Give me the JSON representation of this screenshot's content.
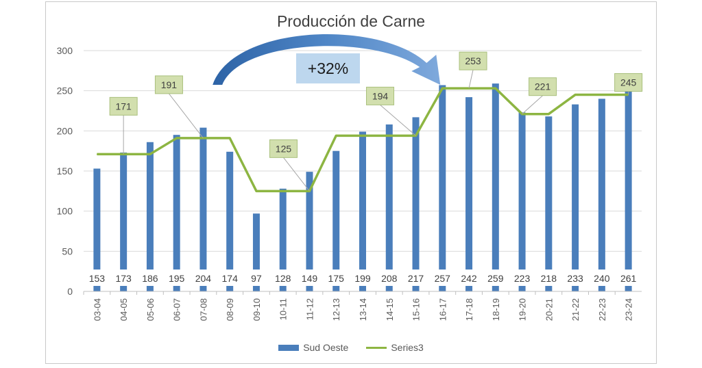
{
  "title": "Producción de Carne",
  "change_label": "+32%",
  "colors": {
    "bar": "#4a7ebb",
    "line": "#8db542",
    "callout_fill": "#d2dfae",
    "callout_border": "#a9c07c",
    "arrow": "#2e6ab0"
  },
  "legend": [
    {
      "label": "Sud Oeste",
      "kind": "bar"
    },
    {
      "label": "Series3",
      "kind": "line"
    }
  ],
  "chart_data": {
    "type": "bar",
    "title": "Producción de Carne",
    "xlabel": "",
    "ylabel": "",
    "ylim": [
      0,
      300
    ],
    "yticks": [
      0,
      50,
      100,
      150,
      200,
      250,
      300
    ],
    "grid": true,
    "legend_position": "bottom",
    "categories": [
      "03-04",
      "04-05",
      "05-06",
      "06-07",
      "07-08",
      "08-09",
      "09-10",
      "10-11",
      "11-12",
      "12-13",
      "13-14",
      "14-15",
      "15-16",
      "16-17",
      "17-18",
      "18-19",
      "19-20",
      "20-21",
      "21-22",
      "22-23",
      "23-24"
    ],
    "series": [
      {
        "name": "Sud Oeste",
        "type": "bar",
        "values": [
          153,
          173,
          186,
          195,
          204,
          174,
          97,
          128,
          149,
          175,
          199,
          208,
          217,
          257,
          242,
          259,
          223,
          218,
          233,
          240,
          261
        ]
      },
      {
        "name": "Series3",
        "type": "line",
        "values": [
          171,
          171,
          171,
          191,
          191,
          191,
          125,
          125,
          125,
          194,
          194,
          194,
          194,
          253,
          253,
          253,
          221,
          221,
          245,
          245,
          245
        ]
      }
    ],
    "callouts": [
      {
        "label": "171",
        "category": "04-05",
        "value": 171
      },
      {
        "label": "191",
        "category": "07-08",
        "value": 191
      },
      {
        "label": "125",
        "category": "11-12",
        "value": 125
      },
      {
        "label": "194",
        "category": "15-16",
        "value": 194
      },
      {
        "label": "253",
        "category": "17-18",
        "value": 253
      },
      {
        "label": "221",
        "category": "19-20",
        "value": 221
      },
      {
        "label": "245",
        "category": "23-24",
        "value": 245
      }
    ],
    "annotations": [
      {
        "text": "+32%",
        "from_category": "08-09",
        "to_category": "16-17"
      }
    ]
  }
}
